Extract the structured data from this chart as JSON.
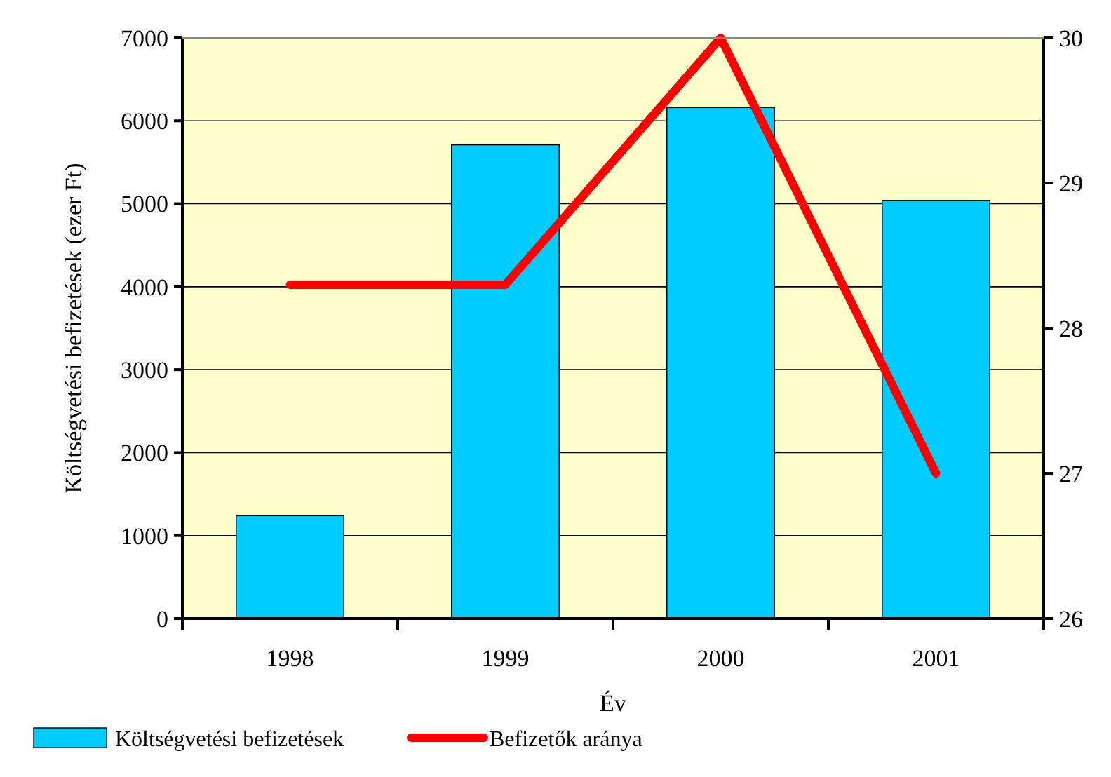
{
  "chart_data": {
    "type": "bar",
    "xlabel": "Év",
    "ylabel": "Költségvetési befizetések (ezer Ft)",
    "categories": [
      "1998",
      "1999",
      "2000",
      "2001"
    ],
    "series": [
      {
        "name": "Költségvetési befizetések",
        "color": "#00ccff",
        "values": [
          1240,
          5710,
          6160,
          5040
        ]
      },
      {
        "name": "Befizetők aránya",
        "color": "#ff0000",
        "type": "line",
        "axis": "y2",
        "values": [
          28.3,
          28.3,
          30,
          27.0
        ]
      }
    ],
    "ylim": [
      0,
      7000
    ],
    "yticks": [
      0,
      1000,
      2000,
      3000,
      4000,
      5000,
      6000,
      7000
    ],
    "y2lim": [
      26,
      30
    ],
    "y2ticks": [
      26,
      27,
      28,
      29,
      30
    ],
    "grid": "y",
    "legend": "bottom",
    "marker": "none"
  }
}
